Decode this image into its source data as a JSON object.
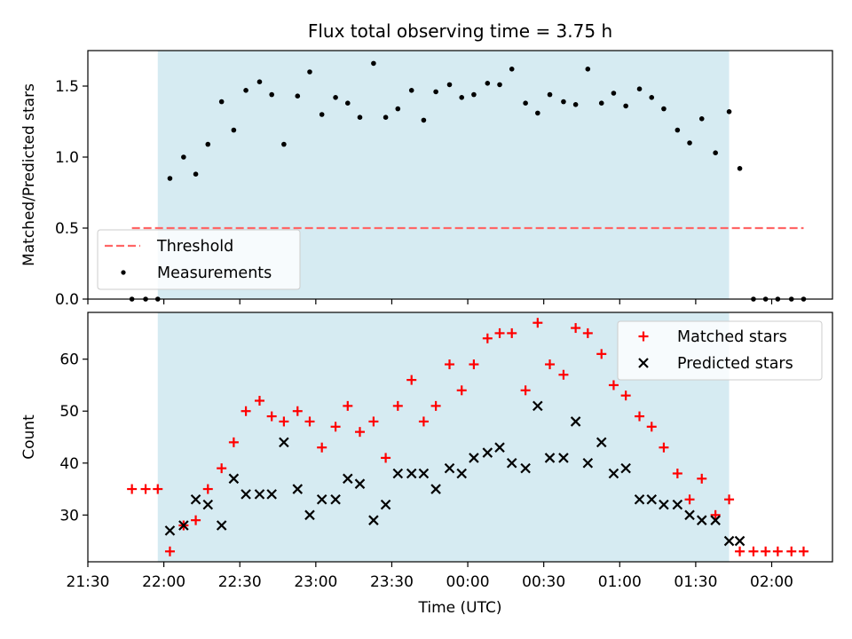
{
  "chart_data": {
    "type": "scatter",
    "title": "Flux total observing time = 3.75 h",
    "xlabel": "Time (UTC)",
    "x_unit": "hours (UTC, continuing past midnight as 24+)",
    "xlim": [
      21.5,
      26.4
    ],
    "xticks": [
      21.5,
      22.0,
      22.5,
      23.0,
      23.5,
      24.0,
      24.5,
      25.0,
      25.5,
      26.0
    ],
    "xtick_labels": [
      "21:30",
      "22:00",
      "22:30",
      "23:00",
      "23:30",
      "00:00",
      "00:30",
      "01:00",
      "01:30",
      "02:00"
    ],
    "shaded_region": [
      21.96,
      25.72
    ],
    "shade_color": "#add8e6",
    "x": [
      21.79,
      21.88,
      21.96,
      22.04,
      22.13,
      22.21,
      22.29,
      22.38,
      22.46,
      22.54,
      22.63,
      22.71,
      22.79,
      22.88,
      22.96,
      23.04,
      23.13,
      23.21,
      23.29,
      23.38,
      23.46,
      23.54,
      23.63,
      23.71,
      23.79,
      23.88,
      23.96,
      24.04,
      24.13,
      24.21,
      24.29,
      24.38,
      24.46,
      24.54,
      24.63,
      24.71,
      24.79,
      24.88,
      24.96,
      25.04,
      25.13,
      25.21,
      25.29,
      25.38,
      25.46,
      25.54,
      25.63,
      25.72,
      25.79,
      25.88,
      25.96,
      26.04,
      26.13,
      26.21
    ],
    "panels": [
      {
        "ylabel": "Matched/Predicted stars",
        "ylim": [
          0,
          1.75
        ],
        "yticks": [
          0.0,
          0.5,
          1.0,
          1.5
        ],
        "ytick_labels": [
          "0.0",
          "0.5",
          "1.0",
          "1.5"
        ],
        "legend_position": "lower-left",
        "threshold": {
          "name": "Threshold",
          "value": 0.5,
          "x_range": [
            21.79,
            26.21
          ],
          "color": "#ff6666"
        },
        "series": [
          {
            "name": "Measurements",
            "marker": "dot",
            "color": "#000000",
            "values": [
              0,
              0,
              0,
              0.85,
              1.0,
              0.88,
              1.09,
              1.39,
              1.19,
              1.47,
              1.53,
              1.44,
              1.09,
              1.43,
              1.6,
              1.3,
              1.42,
              1.38,
              1.28,
              1.66,
              1.28,
              1.34,
              1.47,
              1.26,
              1.46,
              1.51,
              1.42,
              1.44,
              1.52,
              1.51,
              1.62,
              1.38,
              1.31,
              1.44,
              1.39,
              1.37,
              1.62,
              1.38,
              1.45,
              1.36,
              1.48,
              1.42,
              1.34,
              1.19,
              1.1,
              1.27,
              1.03,
              1.32,
              0.92,
              0,
              0,
              0,
              0,
              0
            ]
          }
        ]
      },
      {
        "ylabel": "Count",
        "ylim": [
          21,
          69
        ],
        "yticks": [
          30,
          40,
          50,
          60
        ],
        "ytick_labels": [
          "30",
          "40",
          "50",
          "60"
        ],
        "legend_position": "upper-right",
        "series": [
          {
            "name": "Matched stars",
            "marker": "plus",
            "color": "#ff0000",
            "values": [
              35,
              35,
              35,
              23,
              28,
              29,
              35,
              39,
              44,
              50,
              52,
              49,
              48,
              50,
              48,
              43,
              47,
              51,
              46,
              48,
              41,
              51,
              56,
              48,
              51,
              59,
              54,
              59,
              64,
              65,
              65,
              54,
              67,
              59,
              57,
              66,
              65,
              61,
              55,
              53,
              49,
              47,
              43,
              38,
              33,
              37,
              30,
              33,
              23,
              23,
              23,
              23,
              23,
              23
            ]
          },
          {
            "name": "Predicted stars",
            "marker": "x",
            "color": "#000000",
            "x_start_index": 3,
            "x_end_index": 48,
            "values": [
              27,
              28,
              33,
              32,
              28,
              37,
              34,
              34,
              34,
              44,
              35,
              30,
              33,
              33,
              37,
              36,
              29,
              32,
              38,
              38,
              38,
              35,
              39,
              38,
              41,
              42,
              43,
              40,
              39,
              51,
              41,
              41,
              48,
              40,
              44,
              38,
              39,
              33,
              33,
              32,
              32,
              30,
              29,
              29,
              25,
              25
            ]
          }
        ]
      }
    ]
  }
}
